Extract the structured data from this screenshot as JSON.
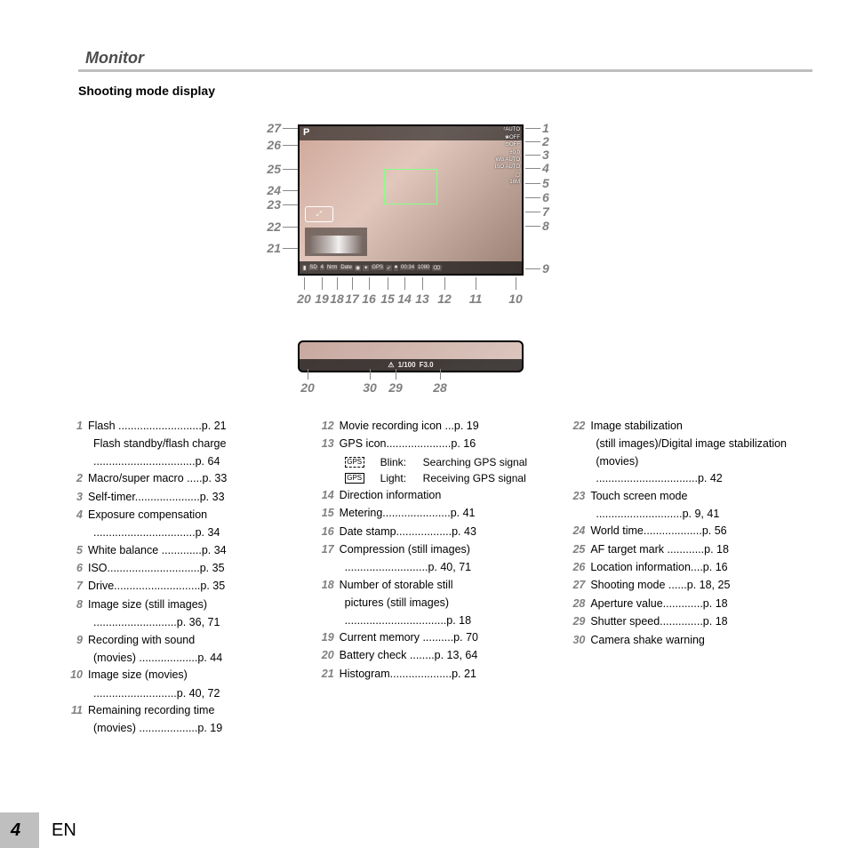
{
  "section_title": "Monitor",
  "sub_title": "Shooting mode display",
  "left_callouts": [
    "27",
    "26",
    "25",
    "24",
    "23",
    "22",
    "21"
  ],
  "right_callouts": [
    "1",
    "2",
    "3",
    "4",
    "5",
    "6",
    "7",
    "8",
    "9"
  ],
  "bottom_callouts": [
    "20",
    "19",
    "18",
    "17",
    "16",
    "15",
    "14",
    "13",
    "12",
    "11",
    "10"
  ],
  "lcd2_callouts": [
    "20",
    "30",
    "29",
    "28"
  ],
  "lcd": {
    "p_mode": "P",
    "touch": "⤢",
    "right_icons": [
      "ᶻAUTO",
      "❀OFF",
      "⏲OFF",
      "±0.0",
      "WB AUTO",
      "ISO AUTO",
      "▢",
      "16M"
    ],
    "bottom_icons": [
      "▮",
      "SD",
      "4",
      "Nrm",
      "Date",
      "◉",
      "✦",
      "GPS",
      "➶",
      "⏺",
      "00:34",
      "1080",
      "Ꝏ"
    ]
  },
  "lcd2_values": {
    "warn": "⚠",
    "shutter": "1/100",
    "aperture": "F3.0"
  },
  "col1": [
    {
      "n": "1",
      "t": "Flash ...........................p. 21"
    },
    {
      "sub": "Flash standby/flash charge"
    },
    {
      "sub": ".................................p. 64"
    },
    {
      "n": "2",
      "t": "Macro/super macro .....p. 33"
    },
    {
      "n": "3",
      "t": "Self-timer.....................p. 33"
    },
    {
      "n": "4",
      "t": "Exposure compensation"
    },
    {
      "sub": ".................................p. 34"
    },
    {
      "n": "5",
      "t": "White balance .............p. 34"
    },
    {
      "n": "6",
      "t": "ISO..............................p. 35"
    },
    {
      "n": "7",
      "t": "Drive............................p. 35"
    },
    {
      "n": "8",
      "t": "Image size (still images)"
    },
    {
      "sub": "...........................p. 36, 71"
    },
    {
      "n": "9",
      "t": "Recording with sound"
    },
    {
      "sub": "(movies) ...................p. 44"
    },
    {
      "n": "10",
      "t": "Image size (movies)"
    },
    {
      "sub": "...........................p. 40, 72"
    },
    {
      "n": "11",
      "t": "Remaining recording time"
    },
    {
      "sub": "(movies) ...................p. 19"
    }
  ],
  "col2": [
    {
      "n": "12",
      "t": "Movie recording icon ...p. 19"
    },
    {
      "n": "13",
      "t": "GPS icon.....................p. 16"
    }
  ],
  "gps_rows": [
    {
      "style": "dashed",
      "label": "Blink:",
      "text": "Searching GPS signal"
    },
    {
      "style": "solid",
      "label": "Light:",
      "text": "Receiving GPS signal"
    }
  ],
  "col2b": [
    {
      "n": "14",
      "t": "Direction information"
    },
    {
      "n": "15",
      "t": "Metering......................p. 41"
    },
    {
      "n": "16",
      "t": "Date stamp..................p. 43"
    },
    {
      "n": "17",
      "t": "Compression (still images)"
    },
    {
      "sub": "...........................p. 40, 71"
    },
    {
      "n": "18",
      "t": "Number of storable still"
    },
    {
      "sub": "pictures (still images)"
    },
    {
      "sub": ".................................p. 18"
    },
    {
      "n": "19",
      "t": "Current memory ..........p. 70"
    },
    {
      "n": "20",
      "t": "Battery check ........p. 13, 64"
    },
    {
      "n": "21",
      "t": "Histogram....................p. 21"
    }
  ],
  "col3": [
    {
      "n": "22",
      "t": "Image stabilization"
    },
    {
      "sub": "(still images)/Digital image stabilization (movies)"
    },
    {
      "sub": ".................................p. 42"
    },
    {
      "n": "23",
      "t": "Touch screen mode"
    },
    {
      "sub": "............................p. 9, 41"
    },
    {
      "n": "24",
      "t": "World time...................p. 56"
    },
    {
      "n": "25",
      "t": "AF target mark ............p. 18"
    },
    {
      "n": "26",
      "t": "Location information....p. 16"
    },
    {
      "n": "27",
      "t": "Shooting mode ......p. 18, 25"
    },
    {
      "n": "28",
      "t": "Aperture value.............p. 18"
    },
    {
      "n": "29",
      "t": "Shutter speed..............p. 18"
    },
    {
      "n": "30",
      "t": "Camera shake warning"
    }
  ],
  "footer": {
    "page": "4",
    "lang": "EN"
  },
  "geom": {
    "left_y": [
      14,
      33,
      60,
      84,
      100,
      125,
      149
    ],
    "right_y": [
      14,
      29,
      44,
      59,
      76,
      92,
      108,
      124,
      172
    ],
    "bottom_x": [
      62,
      82,
      99,
      116,
      135,
      156,
      175,
      195,
      220,
      255,
      300
    ],
    "lcd2_x": [
      66,
      136,
      165,
      215
    ]
  },
  "colors": {
    "gray": "#808080",
    "rule": "#bfbfbf"
  }
}
